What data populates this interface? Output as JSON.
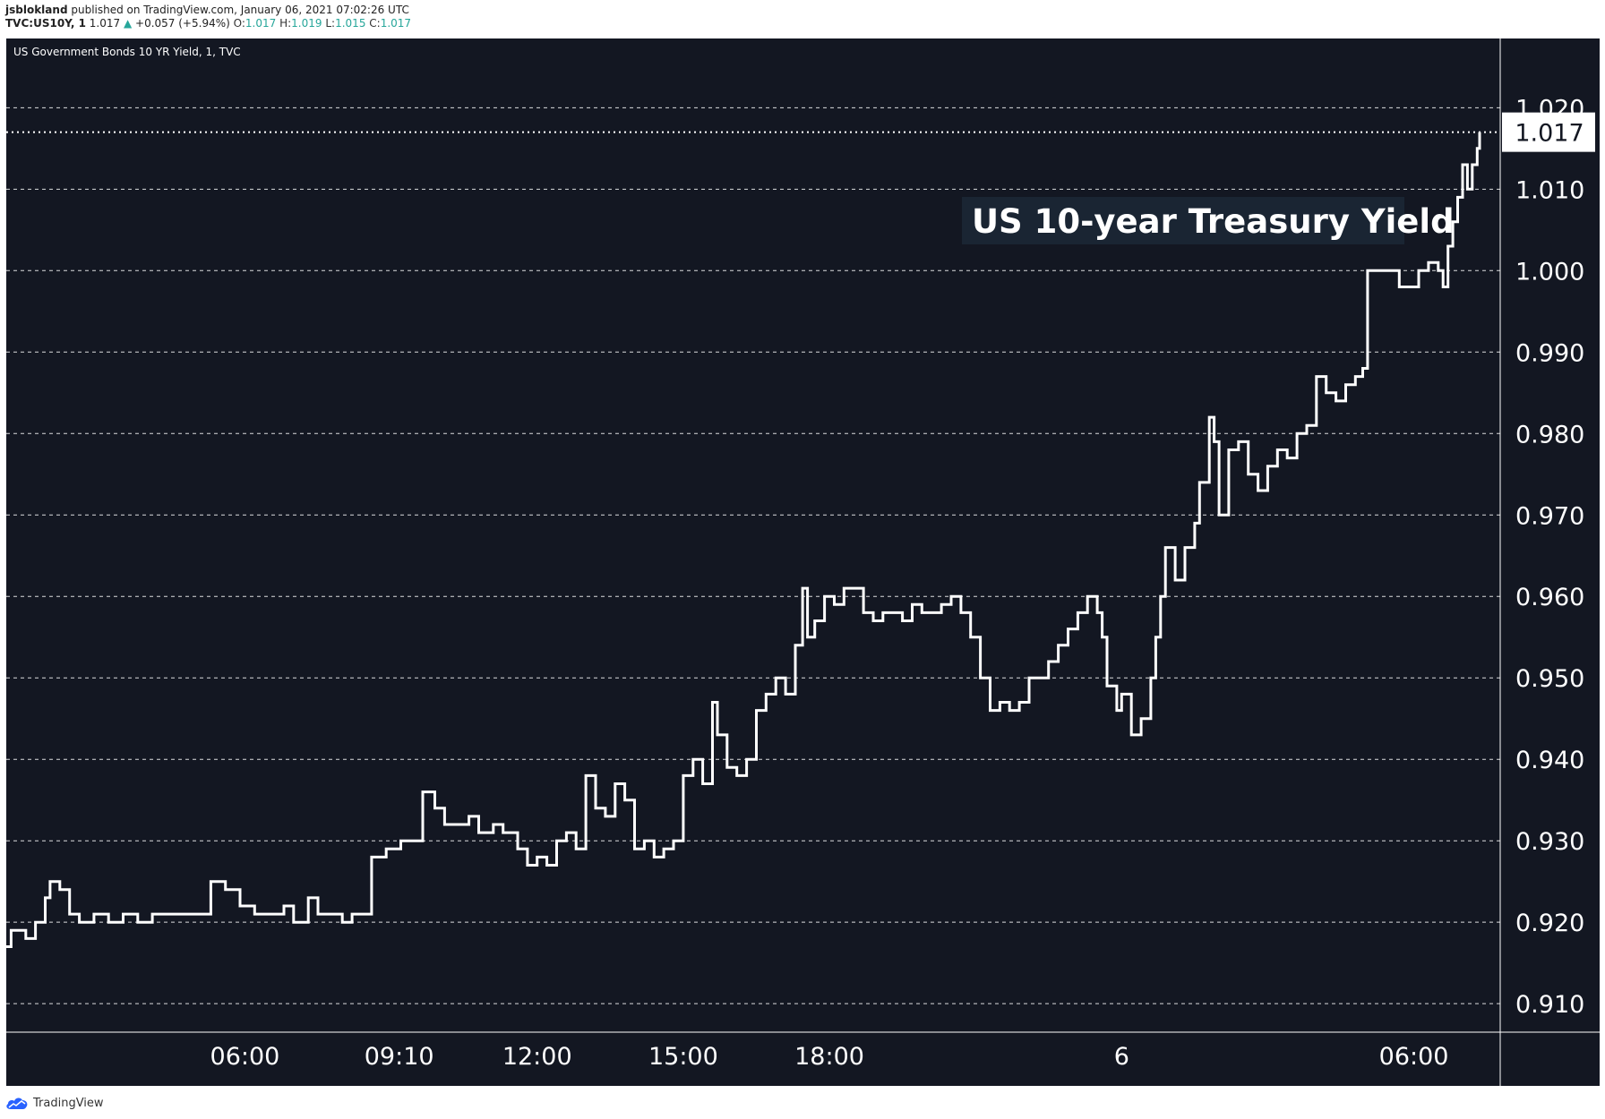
{
  "header": {
    "author": "jsblokland",
    "published": "published on TradingView.com, January 06, 2021 07:02:26 UTC",
    "symbol": "TVC:US10Y, 1",
    "last": "1.017",
    "change": "+0.057 (+5.94%)",
    "o_label": "O:",
    "o_value": "1.017",
    "h_label": "H:",
    "h_value": "1.019",
    "l_label": "L:",
    "l_value": "1.015",
    "c_label": "C:",
    "c_value": "1.017"
  },
  "footer": {
    "brand": "TradingView",
    "icon": "tradingview-cloud-icon"
  },
  "colors": {
    "background": "#131722",
    "line": "#ffffff",
    "grid": "#ffffff",
    "annotation_bg": "#1a2533",
    "up": "#26a69a"
  },
  "chart_data": {
    "type": "line",
    "title": "US Government Bonds 10 YR Yield, 1, TVC",
    "annotation": "US 10-year Treasury Yield",
    "ylim": [
      0.9065,
      1.0285
    ],
    "y_ticks": [
      "0.910",
      "0.920",
      "0.930",
      "0.940",
      "0.950",
      "0.960",
      "0.970",
      "0.980",
      "0.990",
      "1.000",
      "1.010",
      "1.020"
    ],
    "y_tick_values": [
      0.91,
      0.92,
      0.93,
      0.94,
      0.95,
      0.96,
      0.97,
      0.98,
      0.99,
      1.0,
      1.01,
      1.02
    ],
    "x_ticks": [
      "06:00",
      "09:10",
      "12:00",
      "15:00",
      "18:00",
      "6",
      "06:00"
    ],
    "x_tick_hours": [
      6,
      9.1667,
      12,
      15,
      18,
      24,
      30
    ],
    "x_hours_range": [
      1.1,
      31.35
    ],
    "last_price_label": "1.017",
    "last_price": 1.017,
    "grid": "horizontal dashed",
    "series": [
      {
        "values_xy": [
          [
            1.1,
            0.917
          ],
          [
            1.2,
            0.919
          ],
          [
            1.5,
            0.918
          ],
          [
            1.7,
            0.92
          ],
          [
            1.9,
            0.923
          ],
          [
            2.0,
            0.925
          ],
          [
            2.2,
            0.924
          ],
          [
            2.4,
            0.921
          ],
          [
            2.6,
            0.92
          ],
          [
            2.9,
            0.921
          ],
          [
            3.2,
            0.92
          ],
          [
            3.5,
            0.921
          ],
          [
            3.8,
            0.92
          ],
          [
            4.1,
            0.921
          ],
          [
            4.6,
            0.921
          ],
          [
            5.0,
            0.921
          ],
          [
            5.3,
            0.925
          ],
          [
            5.6,
            0.924
          ],
          [
            5.9,
            0.922
          ],
          [
            6.2,
            0.921
          ],
          [
            6.5,
            0.921
          ],
          [
            6.8,
            0.922
          ],
          [
            7.0,
            0.92
          ],
          [
            7.3,
            0.923
          ],
          [
            7.5,
            0.921
          ],
          [
            7.8,
            0.921
          ],
          [
            8.0,
            0.92
          ],
          [
            8.2,
            0.921
          ],
          [
            8.4,
            0.921
          ],
          [
            8.6,
            0.928
          ],
          [
            8.9,
            0.929
          ],
          [
            9.2,
            0.93
          ],
          [
            9.5,
            0.93
          ],
          [
            9.65,
            0.936
          ],
          [
            9.9,
            0.934
          ],
          [
            10.1,
            0.932
          ],
          [
            10.3,
            0.932
          ],
          [
            10.6,
            0.933
          ],
          [
            10.8,
            0.931
          ],
          [
            11.1,
            0.932
          ],
          [
            11.3,
            0.931
          ],
          [
            11.6,
            0.929
          ],
          [
            11.8,
            0.927
          ],
          [
            12.0,
            0.928
          ],
          [
            12.2,
            0.927
          ],
          [
            12.4,
            0.93
          ],
          [
            12.6,
            0.931
          ],
          [
            12.8,
            0.929
          ],
          [
            13.0,
            0.938
          ],
          [
            13.2,
            0.934
          ],
          [
            13.4,
            0.933
          ],
          [
            13.6,
            0.937
          ],
          [
            13.8,
            0.935
          ],
          [
            14.0,
            0.929
          ],
          [
            14.2,
            0.93
          ],
          [
            14.4,
            0.928
          ],
          [
            14.6,
            0.929
          ],
          [
            14.8,
            0.93
          ],
          [
            15.0,
            0.938
          ],
          [
            15.2,
            0.94
          ],
          [
            15.4,
            0.937
          ],
          [
            15.6,
            0.947
          ],
          [
            15.7,
            0.943
          ],
          [
            15.9,
            0.939
          ],
          [
            16.1,
            0.938
          ],
          [
            16.3,
            0.94
          ],
          [
            16.5,
            0.946
          ],
          [
            16.7,
            0.948
          ],
          [
            16.9,
            0.95
          ],
          [
            17.1,
            0.948
          ],
          [
            17.3,
            0.954
          ],
          [
            17.45,
            0.961
          ],
          [
            17.55,
            0.955
          ],
          [
            17.7,
            0.957
          ],
          [
            17.9,
            0.96
          ],
          [
            18.1,
            0.959
          ],
          [
            18.3,
            0.961
          ],
          [
            18.5,
            0.961
          ],
          [
            18.7,
            0.958
          ],
          [
            18.9,
            0.957
          ],
          [
            19.1,
            0.958
          ],
          [
            19.3,
            0.958
          ],
          [
            19.5,
            0.957
          ],
          [
            19.7,
            0.959
          ],
          [
            19.9,
            0.958
          ],
          [
            20.1,
            0.958
          ],
          [
            20.3,
            0.959
          ],
          [
            20.5,
            0.96
          ],
          [
            20.7,
            0.958
          ],
          [
            20.9,
            0.955
          ],
          [
            21.1,
            0.95
          ],
          [
            21.3,
            0.946
          ],
          [
            21.5,
            0.947
          ],
          [
            21.7,
            0.946
          ],
          [
            21.9,
            0.947
          ],
          [
            22.1,
            0.95
          ],
          [
            22.3,
            0.95
          ],
          [
            22.5,
            0.952
          ],
          [
            22.7,
            0.954
          ],
          [
            22.9,
            0.956
          ],
          [
            23.1,
            0.958
          ],
          [
            23.3,
            0.96
          ],
          [
            23.5,
            0.958
          ],
          [
            23.6,
            0.955
          ],
          [
            23.7,
            0.949
          ],
          [
            23.9,
            0.946
          ],
          [
            24.0,
            0.948
          ],
          [
            24.2,
            0.943
          ],
          [
            24.4,
            0.945
          ],
          [
            24.6,
            0.95
          ],
          [
            24.7,
            0.955
          ],
          [
            24.8,
            0.96
          ],
          [
            24.9,
            0.966
          ],
          [
            25.1,
            0.962
          ],
          [
            25.3,
            0.966
          ],
          [
            25.5,
            0.969
          ],
          [
            25.6,
            0.974
          ],
          [
            25.8,
            0.982
          ],
          [
            25.9,
            0.979
          ],
          [
            26.0,
            0.97
          ],
          [
            26.2,
            0.978
          ],
          [
            26.4,
            0.979
          ],
          [
            26.6,
            0.975
          ],
          [
            26.8,
            0.973
          ],
          [
            27.0,
            0.976
          ],
          [
            27.2,
            0.978
          ],
          [
            27.4,
            0.977
          ],
          [
            27.6,
            0.98
          ],
          [
            27.8,
            0.981
          ],
          [
            28.0,
            0.987
          ],
          [
            28.2,
            0.985
          ],
          [
            28.4,
            0.984
          ],
          [
            28.6,
            0.986
          ],
          [
            28.8,
            0.987
          ],
          [
            28.95,
            0.988
          ],
          [
            29.05,
            1.0
          ],
          [
            29.3,
            1.0
          ],
          [
            29.5,
            1.0
          ],
          [
            29.7,
            0.998
          ],
          [
            29.9,
            0.998
          ],
          [
            30.1,
            1.0
          ],
          [
            30.3,
            1.001
          ],
          [
            30.5,
            1.0
          ],
          [
            30.6,
            0.998
          ],
          [
            30.7,
            1.003
          ],
          [
            30.8,
            1.006
          ],
          [
            30.9,
            1.009
          ],
          [
            31.0,
            1.013
          ],
          [
            31.1,
            1.01
          ],
          [
            31.2,
            1.013
          ],
          [
            31.3,
            1.015
          ],
          [
            31.35,
            1.017
          ]
        ]
      }
    ]
  }
}
